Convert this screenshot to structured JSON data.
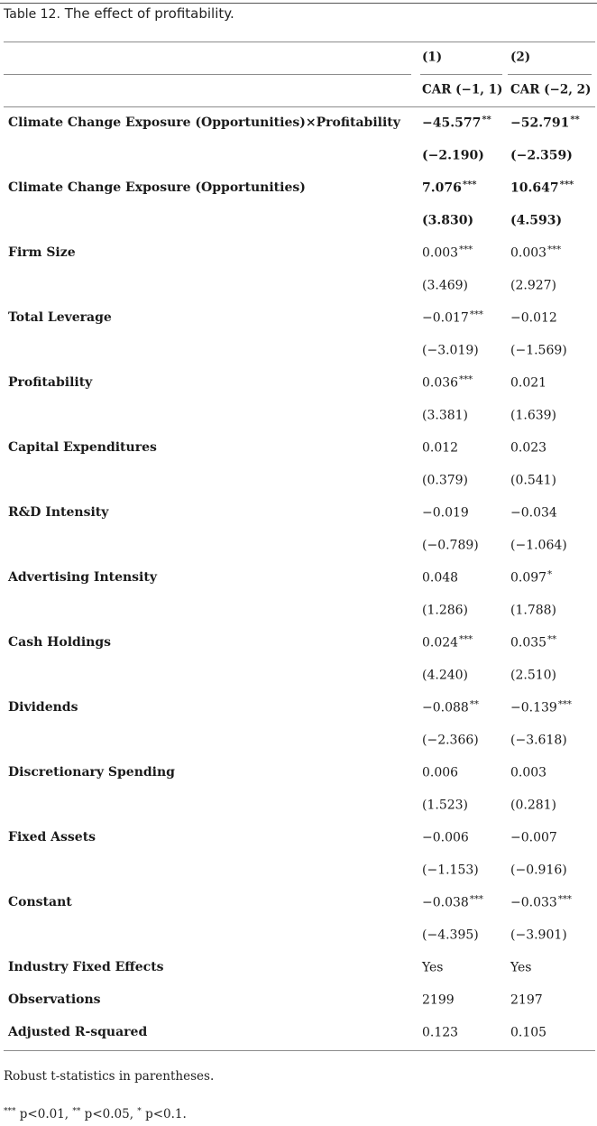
{
  "caption": {
    "label": "Table 12.",
    "title": "The effect of profitability."
  },
  "header": {
    "col1_num": "(1)",
    "col2_num": "(2)",
    "col1_name": "CAR (−1, 1)",
    "col2_name": "CAR (−2, 2)"
  },
  "rows": [
    {
      "label": "Climate Change Exposure (Opportunities)×Profitability",
      "c1": "−45.577",
      "s1": "**",
      "c2": "−52.791",
      "s2": "**",
      "bold": true
    },
    {
      "label": "",
      "c1": "(−2.190)",
      "s1": "",
      "c2": "(−2.359)",
      "s2": "",
      "bold": true
    },
    {
      "label": "Climate Change Exposure (Opportunities)",
      "c1": "7.076",
      "s1": "***",
      "c2": "10.647",
      "s2": "***",
      "bold": true
    },
    {
      "label": "",
      "c1": "(3.830)",
      "s1": "",
      "c2": "(4.593)",
      "s2": "",
      "bold": true
    },
    {
      "label": "Firm Size",
      "c1": "0.003",
      "s1": "***",
      "c2": "0.003",
      "s2": "***",
      "bold": false
    },
    {
      "label": "",
      "c1": "(3.469)",
      "s1": "",
      "c2": "(2.927)",
      "s2": "",
      "bold": false
    },
    {
      "label": "Total Leverage",
      "c1": "−0.017",
      "s1": "***",
      "c2": "−0.012",
      "s2": "",
      "bold": false
    },
    {
      "label": "",
      "c1": "(−3.019)",
      "s1": "",
      "c2": "(−1.569)",
      "s2": "",
      "bold": false
    },
    {
      "label": "Profitability",
      "c1": "0.036",
      "s1": "***",
      "c2": "0.021",
      "s2": "",
      "bold": false
    },
    {
      "label": "",
      "c1": "(3.381)",
      "s1": "",
      "c2": "(1.639)",
      "s2": "",
      "bold": false
    },
    {
      "label": "Capital Expenditures",
      "c1": "0.012",
      "s1": "",
      "c2": "0.023",
      "s2": "",
      "bold": false
    },
    {
      "label": "",
      "c1": "(0.379)",
      "s1": "",
      "c2": "(0.541)",
      "s2": "",
      "bold": false
    },
    {
      "label": "R&D Intensity",
      "c1": "−0.019",
      "s1": "",
      "c2": "−0.034",
      "s2": "",
      "bold": false
    },
    {
      "label": "",
      "c1": "(−0.789)",
      "s1": "",
      "c2": "(−1.064)",
      "s2": "",
      "bold": false
    },
    {
      "label": "Advertising Intensity",
      "c1": "0.048",
      "s1": "",
      "c2": "0.097",
      "s2": "*",
      "bold": false
    },
    {
      "label": "",
      "c1": "(1.286)",
      "s1": "",
      "c2": "(1.788)",
      "s2": "",
      "bold": false
    },
    {
      "label": "Cash Holdings",
      "c1": "0.024",
      "s1": "***",
      "c2": "0.035",
      "s2": "**",
      "bold": false
    },
    {
      "label": "",
      "c1": "(4.240)",
      "s1": "",
      "c2": "(2.510)",
      "s2": "",
      "bold": false
    },
    {
      "label": "Dividends",
      "c1": "−0.088",
      "s1": "**",
      "c2": "−0.139",
      "s2": "***",
      "bold": false
    },
    {
      "label": "",
      "c1": "(−2.366)",
      "s1": "",
      "c2": "(−3.618)",
      "s2": "",
      "bold": false
    },
    {
      "label": "Discretionary Spending",
      "c1": "0.006",
      "s1": "",
      "c2": "0.003",
      "s2": "",
      "bold": false
    },
    {
      "label": "",
      "c1": "(1.523)",
      "s1": "",
      "c2": "(0.281)",
      "s2": "",
      "bold": false
    },
    {
      "label": "Fixed Assets",
      "c1": "−0.006",
      "s1": "",
      "c2": "−0.007",
      "s2": "",
      "bold": false
    },
    {
      "label": "",
      "c1": "(−1.153)",
      "s1": "",
      "c2": "(−0.916)",
      "s2": "",
      "bold": false
    },
    {
      "label": "Constant",
      "c1": "−0.038",
      "s1": "***",
      "c2": "−0.033",
      "s2": "***",
      "bold": false
    },
    {
      "label": "",
      "c1": "(−4.395)",
      "s1": "",
      "c2": "(−3.901)",
      "s2": "",
      "bold": false
    },
    {
      "label": "Industry Fixed Effects",
      "c1": "Yes",
      "s1": "",
      "c2": "Yes",
      "s2": "",
      "bold": false
    },
    {
      "label": "Observations",
      "c1": "2199",
      "s1": "",
      "c2": "2197",
      "s2": "",
      "bold": false
    },
    {
      "label": "Adjusted R-squared",
      "c1": "0.123",
      "s1": "",
      "c2": "0.105",
      "s2": "",
      "bold": false
    }
  ],
  "notes": {
    "robust": "Robust t-statistics in parentheses.",
    "sig_1_stars": "***",
    "sig_1_text": " p<0.01, ",
    "sig_2_stars": "**",
    "sig_2_text": " p<0.05, ",
    "sig_3_stars": "*",
    "sig_3_text": " p<0.1."
  }
}
